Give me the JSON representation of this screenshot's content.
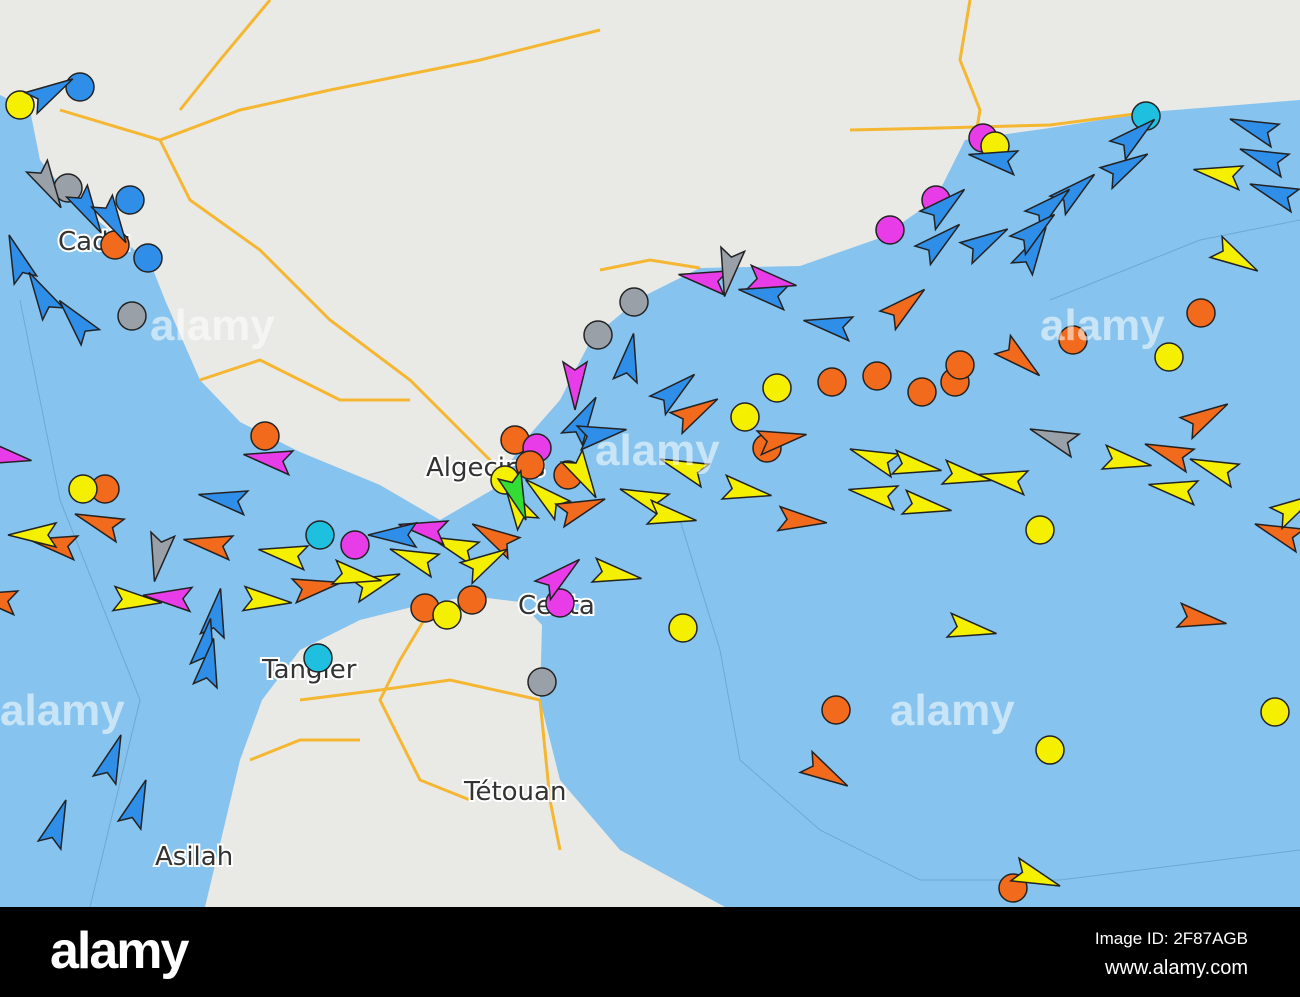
{
  "map": {
    "places": [
      {
        "name": "Cadiz"
      },
      {
        "name": "Algeciras"
      },
      {
        "name": "Ceuta"
      },
      {
        "name": "Tangier"
      },
      {
        "name": "Tétouan"
      },
      {
        "name": "Asilah"
      }
    ],
    "colors": {
      "sea": "#86c3ee",
      "land": "#e9e9e6",
      "road": "#f5b731",
      "cargo": "#f5f000",
      "tanker": "#f26a1b",
      "passenger": "#2f8fe8",
      "pleasure": "#e83ce8",
      "tug_special": "#1fbfdf",
      "unknown": "#9aa0a8",
      "fishing": "#33dd33"
    },
    "marker_types": [
      "ship-arrow-icon",
      "anchored-ship-circle-icon"
    ]
  },
  "watermark": "alamy",
  "footer": {
    "logo": "alamy",
    "image_id": "Image ID: 2F87AGB",
    "site": "www.alamy.com"
  }
}
